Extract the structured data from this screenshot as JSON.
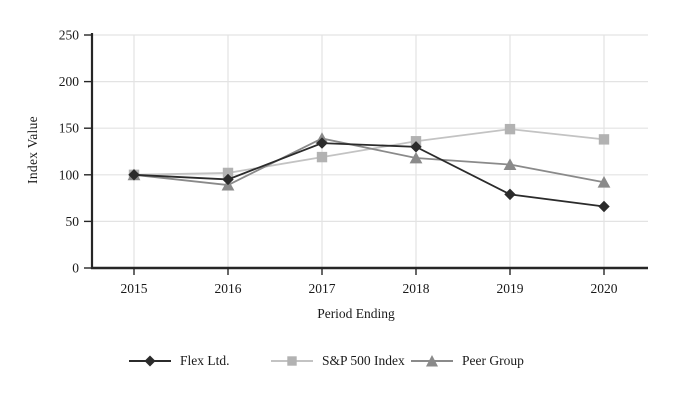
{
  "figure": {
    "background": "#ffffff"
  },
  "chart_data": {
    "type": "line",
    "title": "",
    "xlabel": "Period Ending",
    "ylabel": "Index Value",
    "categories": [
      "2015",
      "2016",
      "2017",
      "2018",
      "2019",
      "2020"
    ],
    "y_ticks": [
      0,
      50,
      100,
      150,
      200,
      250
    ],
    "ylim": [
      0,
      250
    ],
    "grid": true,
    "legend_position": "bottom",
    "series": [
      {
        "name": "Flex Ltd.",
        "marker": "diamond",
        "color": "#2b2b2b",
        "line_color": "#2b2b2b",
        "values": [
          100,
          95,
          134,
          130,
          79,
          66
        ]
      },
      {
        "name": "S&P 500 Index",
        "marker": "square",
        "color": "#b2b2b2",
        "line_color": "#c3c3c3",
        "values": [
          100,
          102,
          119,
          136,
          149,
          138
        ]
      },
      {
        "name": "Peer Group",
        "marker": "triangle",
        "color": "#8a8a8a",
        "line_color": "#8a8a8a",
        "values": [
          100,
          89,
          139,
          118,
          111,
          92
        ]
      }
    ],
    "colors": {
      "axis": "#262626",
      "grid": "#e3e3e3",
      "text": "#1a1a1a"
    }
  }
}
